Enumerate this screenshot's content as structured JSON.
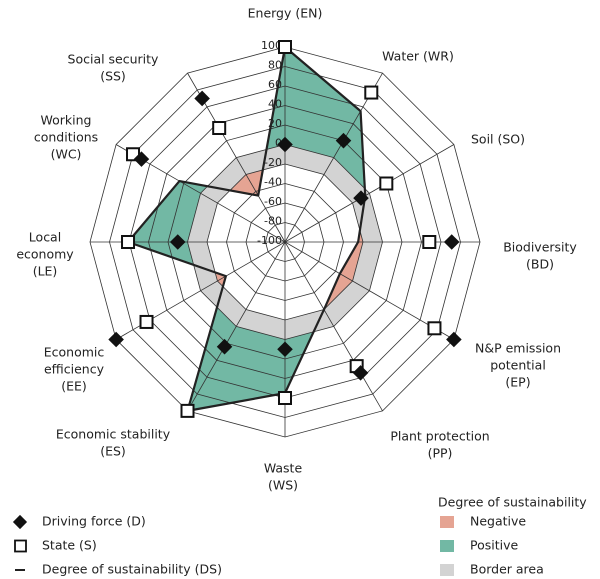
{
  "chart_data": {
    "type": "radar",
    "categories": [
      [
        "Energy (EN)"
      ],
      [
        "Water (WR)"
      ],
      [
        "Soil (SO)"
      ],
      [
        "Biodiversity",
        "(BD)"
      ],
      [
        "N&P emission",
        "potential",
        "(EP)"
      ],
      [
        "Plant protection",
        "(PP)"
      ],
      [
        "Waste",
        "(WS)"
      ],
      [
        "Economic stability",
        "(ES)"
      ],
      [
        "Economic",
        "efficiency",
        "(EE)"
      ],
      [
        "Local",
        "economy",
        "(LE)"
      ],
      [
        "Working",
        "conditions",
        "(WC)"
      ],
      [
        "Social security",
        "(SS)"
      ]
    ],
    "ylim": [
      -100,
      100
    ],
    "yticks": [
      100,
      80,
      60,
      40,
      20,
      0,
      -20,
      -40,
      -60,
      -80,
      -100
    ],
    "series": [
      {
        "name": "Driving force (D)",
        "marker": "diamond",
        "color": "#111111",
        "values": [
          0,
          20,
          -10,
          71,
          100,
          55,
          10,
          24,
          100,
          10,
          70,
          70
        ]
      },
      {
        "name": "State (S)",
        "marker": "square",
        "color": "#111111",
        "values": [
          100,
          77,
          20,
          48,
          77,
          47,
          60,
          100,
          64,
          61,
          80,
          35
        ]
      },
      {
        "name": "Degree of sustainability (DS)",
        "marker": "line",
        "color": "#222222",
        "values": [
          100,
          55,
          -5,
          -25,
          -35,
          -20,
          55,
          100,
          -30,
          61,
          25,
          -45
        ]
      }
    ],
    "legend_title": "Degree of sustainability",
    "areas": [
      {
        "name": "Negative",
        "color": "#e5a493"
      },
      {
        "name": "Positive",
        "color": "#72b8a4"
      },
      {
        "name": "Border area",
        "color": "#d3d3d3",
        "range": [
          -20,
          0
        ]
      }
    ]
  }
}
